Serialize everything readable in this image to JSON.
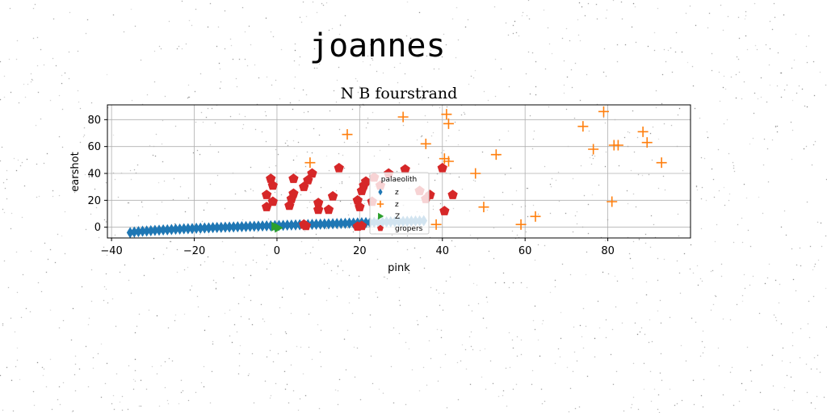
{
  "figure_title": "joannes",
  "chart_data": {
    "type": "scatter",
    "title": "N B fourstrand",
    "xlabel": "pink",
    "ylabel": "earshot",
    "xlim": [
      -41,
      100
    ],
    "ylim": [
      -8,
      91
    ],
    "xticks": [
      -40,
      -20,
      0,
      20,
      40,
      60,
      80
    ],
    "yticks": [
      0,
      20,
      40,
      60,
      80
    ],
    "grid": true,
    "legend": {
      "title": "palaeolith",
      "placement": "center"
    },
    "series": [
      {
        "name": "z",
        "color": "#1f77b4",
        "marker": "diamond",
        "points": [
          [
            -35.5,
            -4.0
          ],
          [
            -34.5,
            -3.6
          ],
          [
            -33.5,
            -3.3
          ],
          [
            -32.5,
            -3.0
          ],
          [
            -31.5,
            -2.8
          ],
          [
            -30.5,
            -2.6
          ],
          [
            -29.5,
            -2.4
          ],
          [
            -28.5,
            -2.2
          ],
          [
            -27.5,
            -2.0
          ],
          [
            -26.5,
            -1.9
          ],
          [
            -25.5,
            -1.7
          ],
          [
            -24.5,
            -1.5
          ],
          [
            -23.5,
            -1.4
          ],
          [
            -22.5,
            -1.2
          ],
          [
            -21.5,
            -1.1
          ],
          [
            -20.5,
            -1.0
          ],
          [
            -19.5,
            -0.8
          ],
          [
            -18.5,
            -0.7
          ],
          [
            -17.5,
            -0.6
          ],
          [
            -16.5,
            -0.5
          ],
          [
            -15.5,
            -0.3
          ],
          [
            -14.5,
            -0.2
          ],
          [
            -13.5,
            -0.1
          ],
          [
            -12.5,
            0.0
          ],
          [
            -11.5,
            0.1
          ],
          [
            -10.5,
            0.2
          ],
          [
            -9.5,
            0.3
          ],
          [
            -8.5,
            0.4
          ],
          [
            -7.5,
            0.5
          ],
          [
            -6.5,
            0.6
          ],
          [
            -5.5,
            0.7
          ],
          [
            -4.5,
            0.8
          ],
          [
            -3.5,
            0.9
          ],
          [
            -2.5,
            1.0
          ],
          [
            -1.5,
            1.1
          ],
          [
            -0.5,
            1.2
          ],
          [
            0.5,
            1.3
          ],
          [
            1.5,
            1.4
          ],
          [
            2.5,
            1.5
          ],
          [
            3.5,
            1.6
          ],
          [
            4.5,
            1.7
          ],
          [
            5.5,
            1.8
          ],
          [
            6.5,
            1.9
          ],
          [
            7.5,
            2.0
          ],
          [
            8.5,
            2.1
          ],
          [
            9.5,
            2.2
          ],
          [
            10.5,
            2.3
          ],
          [
            11.5,
            2.4
          ],
          [
            12.5,
            2.5
          ],
          [
            13.5,
            2.6
          ],
          [
            14.5,
            2.7
          ],
          [
            15.5,
            2.8
          ],
          [
            16.5,
            2.9
          ],
          [
            17.5,
            3.0
          ],
          [
            18.5,
            3.1
          ],
          [
            19.5,
            3.2
          ],
          [
            20.5,
            3.3
          ],
          [
            21.5,
            3.4
          ],
          [
            22.5,
            3.5
          ],
          [
            23.5,
            3.6
          ],
          [
            24.5,
            3.7
          ],
          [
            25.5,
            3.8
          ],
          [
            26.5,
            3.9
          ],
          [
            27.5,
            4.0
          ],
          [
            28.5,
            4.1
          ],
          [
            29.5,
            4.2
          ],
          [
            30.5,
            4.3
          ],
          [
            31.5,
            4.4
          ],
          [
            32.5,
            4.5
          ],
          [
            33.5,
            4.6
          ],
          [
            34.5,
            4.7
          ],
          [
            35.5,
            4.8
          ]
        ]
      },
      {
        "name": "z",
        "color": "#ff7f0e",
        "marker": "plus",
        "points": [
          [
            8,
            48
          ],
          [
            17,
            69
          ],
          [
            30.5,
            82
          ],
          [
            36,
            62
          ],
          [
            38.5,
            2
          ],
          [
            40.5,
            51
          ],
          [
            41,
            84
          ],
          [
            41.5,
            49
          ],
          [
            41.5,
            77
          ],
          [
            48,
            40
          ],
          [
            50,
            15
          ],
          [
            53,
            54
          ],
          [
            59,
            2
          ],
          [
            62.5,
            8
          ],
          [
            74,
            75
          ],
          [
            76.5,
            58
          ],
          [
            79,
            86
          ],
          [
            81,
            19
          ],
          [
            81.5,
            61
          ],
          [
            82.5,
            61
          ],
          [
            88.5,
            71
          ],
          [
            89.5,
            63
          ],
          [
            93,
            48
          ]
        ]
      },
      {
        "name": "Z",
        "color": "#2ca02c",
        "marker": "triangle-right",
        "points": [
          [
            -0.5,
            0.5
          ],
          [
            0.3,
            -0.5
          ]
        ]
      },
      {
        "name": "gropers",
        "color": "#d62728",
        "marker": "pentagon",
        "points": [
          [
            -2.5,
            15
          ],
          [
            -2.5,
            24
          ],
          [
            -1.5,
            36
          ],
          [
            -1,
            31
          ],
          [
            -1,
            19
          ],
          [
            3,
            16
          ],
          [
            3.5,
            21
          ],
          [
            4,
            25
          ],
          [
            4,
            36
          ],
          [
            6.5,
            30
          ],
          [
            7.5,
            35
          ],
          [
            8.5,
            40
          ],
          [
            10,
            18
          ],
          [
            10,
            13
          ],
          [
            12.5,
            13
          ],
          [
            13.5,
            23
          ],
          [
            15,
            44
          ],
          [
            19.5,
            20
          ],
          [
            20,
            15
          ],
          [
            20.5,
            27
          ],
          [
            21,
            31
          ],
          [
            21.5,
            34
          ],
          [
            23,
            19
          ],
          [
            23.5,
            37
          ],
          [
            25,
            31
          ],
          [
            27,
            40
          ],
          [
            31,
            43
          ],
          [
            34.5,
            27
          ],
          [
            36,
            21
          ],
          [
            37,
            24
          ],
          [
            40,
            44
          ],
          [
            40.5,
            12
          ],
          [
            42.5,
            24
          ],
          [
            7,
            1
          ],
          [
            6.5,
            2
          ],
          [
            20.5,
            1
          ],
          [
            19.5,
            0.5
          ]
        ]
      }
    ]
  }
}
